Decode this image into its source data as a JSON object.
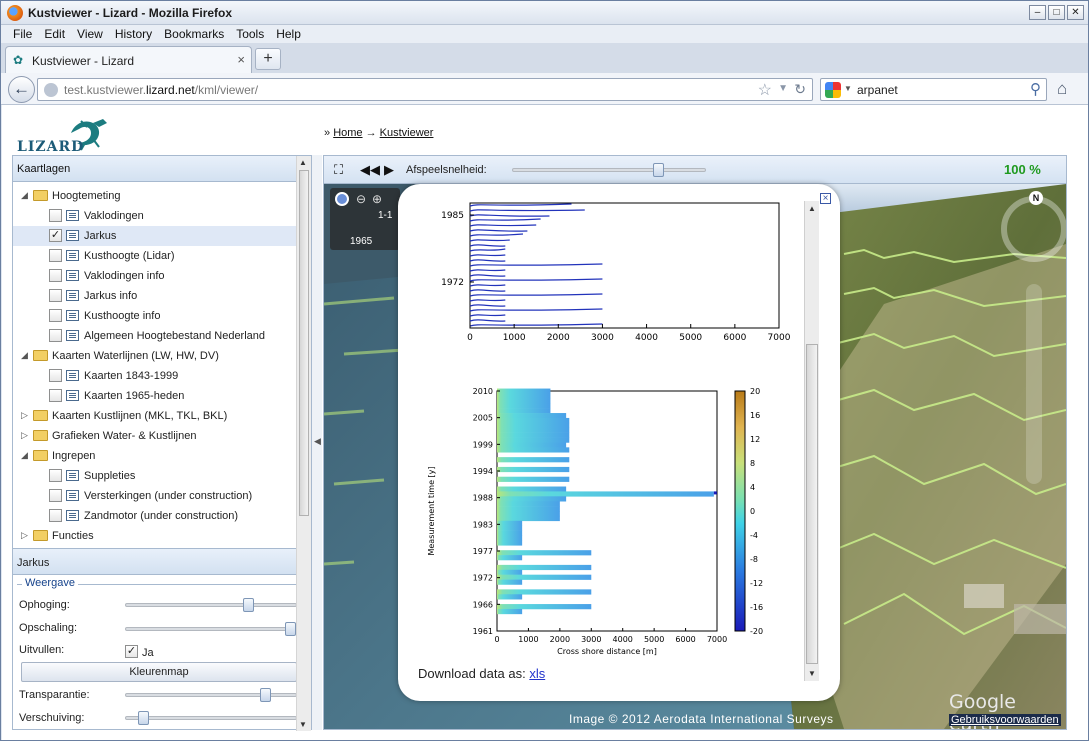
{
  "window": {
    "title": "Kustviewer - Lizard - Mozilla Firefox"
  },
  "menu": [
    "File",
    "Edit",
    "View",
    "History",
    "Bookmarks",
    "Tools",
    "Help"
  ],
  "tab": {
    "label": "Kustviewer - Lizard"
  },
  "url": {
    "prefix": "test.kustviewer.",
    "domain": "lizard.net",
    "path": "/kml/viewer/"
  },
  "search": {
    "value": "arpanet"
  },
  "logo": {
    "text": "LIZARD"
  },
  "breadcrumb": {
    "sep": "»",
    "home": "Home",
    "arrow": "→",
    "current": "Kustviewer"
  },
  "kaartlagen": {
    "title": "Kaartlagen",
    "items": [
      {
        "label": "Hoogtemeting",
        "type": "folder",
        "expanded": true,
        "indent": 0
      },
      {
        "label": "Vaklodingen",
        "type": "layer",
        "checked": false,
        "indent": 1
      },
      {
        "label": "Jarkus",
        "type": "layer",
        "checked": true,
        "indent": 1,
        "selected": true
      },
      {
        "label": "Kusthoogte (Lidar)",
        "type": "layer",
        "checked": false,
        "indent": 1
      },
      {
        "label": "Vaklodingen info",
        "type": "layer",
        "checked": false,
        "indent": 1
      },
      {
        "label": "Jarkus info",
        "type": "layer",
        "checked": false,
        "indent": 1
      },
      {
        "label": "Kusthoogte info",
        "type": "layer",
        "checked": false,
        "indent": 1
      },
      {
        "label": "Algemeen Hoogtebestand Nederland",
        "type": "layer",
        "checked": false,
        "indent": 1
      },
      {
        "label": "Kaarten Waterlijnen (LW, HW, DV)",
        "type": "folder",
        "expanded": true,
        "indent": 0
      },
      {
        "label": "Kaarten 1843-1999",
        "type": "layer",
        "checked": false,
        "indent": 1
      },
      {
        "label": "Kaarten 1965-heden",
        "type": "layer",
        "checked": false,
        "indent": 1
      },
      {
        "label": "Kaarten Kustlijnen (MKL, TKL, BKL)",
        "type": "folder",
        "expanded": false,
        "indent": 0
      },
      {
        "label": "Grafieken Water- & Kustlijnen",
        "type": "folder",
        "expanded": false,
        "indent": 0
      },
      {
        "label": "Ingrepen",
        "type": "folder",
        "expanded": true,
        "indent": 0
      },
      {
        "label": "Suppleties",
        "type": "layer",
        "checked": false,
        "indent": 1
      },
      {
        "label": "Versterkingen (under construction)",
        "type": "layer",
        "checked": false,
        "indent": 1
      },
      {
        "label": "Zandmotor (under construction)",
        "type": "layer",
        "checked": false,
        "indent": 1
      },
      {
        "label": "Functies",
        "type": "folder",
        "expanded": false,
        "indent": 0
      }
    ]
  },
  "jarkus": {
    "title": "Jarkus",
    "legend": "Weergave",
    "ophoging": {
      "label": "Ophoging:",
      "level": 0.72
    },
    "opschaling": {
      "label": "Opschaling:",
      "level": 1.0
    },
    "uitvullen": {
      "label": "Uitvullen:",
      "checked": true,
      "value": "Ja"
    },
    "kleurenmap": "Kleurenmap",
    "transparantie": {
      "label": "Transparantie:",
      "level": 0.82
    },
    "verschuiving": {
      "label": "Verschuiving:",
      "level": 0.1
    }
  },
  "viewer": {
    "speed_label": "Afspeelsnelheid:",
    "zoom": "100 %",
    "credit": "Image © 2012 Aerodata International Surveys",
    "terms": "Gebruiksvoorwaarden",
    "brand": "Google earth",
    "north": "N",
    "time_range": "1-1",
    "time_year": "1965"
  },
  "popup": {
    "download_text": "Download data as:",
    "download_link": "xls"
  },
  "chart_data": [
    {
      "type": "line",
      "x_ticks": [
        "0",
        "1000",
        "2000",
        "3000",
        "4000",
        "5000",
        "6000",
        "7000"
      ],
      "y_ticks": [
        "1985",
        "1972"
      ],
      "xlim": [
        0,
        7000
      ],
      "note_series_color": "#2233bb"
    },
    {
      "type": "heatmap",
      "xlabel": "Cross shore distance [m]",
      "ylabel": "Measurement time [y]",
      "x_ticks": [
        "0",
        "1000",
        "2000",
        "3000",
        "4000",
        "5000",
        "6000",
        "7000"
      ],
      "y_ticks": [
        "2010",
        "2005",
        "1999",
        "1994",
        "1988",
        "1983",
        "1977",
        "1972",
        "1966",
        "1961"
      ],
      "colorbar_ticks": [
        "20",
        "16",
        "12",
        "8",
        "4",
        "0",
        "-4",
        "-8",
        "-12",
        "-16",
        "-20"
      ],
      "xlim": [
        0,
        7000
      ],
      "ylim": [
        1961,
        2010
      ],
      "zlim": [
        -20,
        20
      ]
    }
  ]
}
